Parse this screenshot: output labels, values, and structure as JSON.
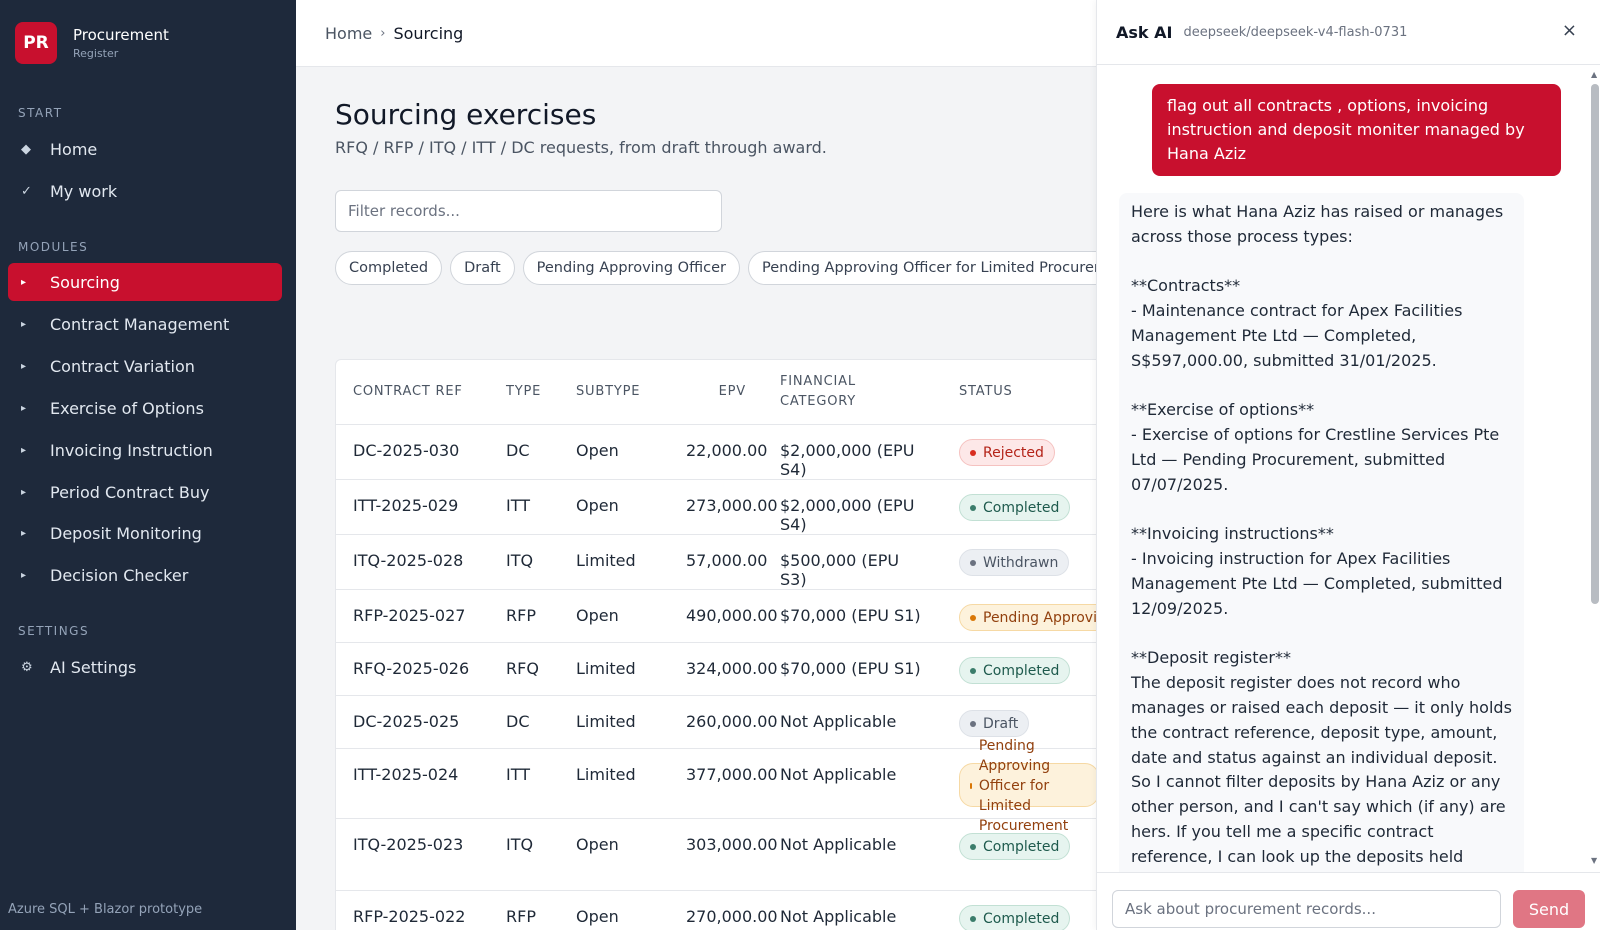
{
  "brand": {
    "initials": "PR",
    "title": "Procurement",
    "subtitle": "Register"
  },
  "sidebar": {
    "sections": {
      "start": "START",
      "modules": "MODULES",
      "settings": "SETTINGS"
    },
    "start_items": [
      {
        "icon": "◆",
        "label": "Home"
      },
      {
        "icon": "✓",
        "label": "My work"
      }
    ],
    "module_items": [
      {
        "icon": "▸",
        "label": "Sourcing"
      },
      {
        "icon": "▸",
        "label": "Contract Management"
      },
      {
        "icon": "▸",
        "label": "Contract Variation"
      },
      {
        "icon": "▸",
        "label": "Exercise of Options"
      },
      {
        "icon": "▸",
        "label": "Invoicing Instruction"
      },
      {
        "icon": "▸",
        "label": "Period Contract Buy"
      },
      {
        "icon": "▸",
        "label": "Deposit Monitoring"
      },
      {
        "icon": "▸",
        "label": "Decision Checker"
      }
    ],
    "settings_items": [
      {
        "icon": "⚙",
        "label": "AI Settings"
      }
    ],
    "active_item": "Sourcing",
    "footer": "Azure SQL + Blazor prototype"
  },
  "breadcrumb": {
    "home": "Home",
    "separator": "›",
    "current": "Sourcing"
  },
  "page": {
    "title": "Sourcing exercises",
    "subtitle": "RFQ / RFP / ITQ / ITT / DC requests, from draft through award.",
    "filter_placeholder": "Filter records...",
    "chips": [
      "Completed",
      "Draft",
      "Pending Approving Officer",
      "Pending Approving Officer for Limited Procurement"
    ]
  },
  "table": {
    "headers": {
      "ref": "CONTRACT REF",
      "type": "TYPE",
      "subtype": "SUBTYPE",
      "epv": "EPV",
      "fin": "FINANCIAL CATEGORY",
      "status": "STATUS"
    },
    "rows": [
      {
        "ref": "DC-2025-030",
        "type": "DC",
        "subtype": "Open",
        "epv": "22,000.00",
        "fin": "$2,000,000 (EPU S4)",
        "status": "Rejected"
      },
      {
        "ref": "ITT-2025-029",
        "type": "ITT",
        "subtype": "Open",
        "epv": "273,000.00",
        "fin": "$2,000,000 (EPU S4)",
        "status": "Completed"
      },
      {
        "ref": "ITQ-2025-028",
        "type": "ITQ",
        "subtype": "Limited",
        "epv": "57,000.00",
        "fin": "$500,000 (EPU S3)",
        "status": "Withdrawn"
      },
      {
        "ref": "RFP-2025-027",
        "type": "RFP",
        "subtype": "Open",
        "epv": "490,000.00",
        "fin": "$70,000 (EPU S1)",
        "status": "Pending Approving Officer"
      },
      {
        "ref": "RFQ-2025-026",
        "type": "RFQ",
        "subtype": "Limited",
        "epv": "324,000.00",
        "fin": "$70,000 (EPU S1)",
        "status": "Completed"
      },
      {
        "ref": "DC-2025-025",
        "type": "DC",
        "subtype": "Limited",
        "epv": "260,000.00",
        "fin": "Not Applicable",
        "status": "Draft"
      },
      {
        "ref": "ITT-2025-024",
        "type": "ITT",
        "subtype": "Limited",
        "epv": "377,000.00",
        "fin": "Not Applicable",
        "status": "Pending Approving Officer for Limited Procurement"
      },
      {
        "ref": "ITQ-2025-023",
        "type": "ITQ",
        "subtype": "Open",
        "epv": "303,000.00",
        "fin": "Not Applicable",
        "status": "Completed"
      },
      {
        "ref": "RFP-2025-022",
        "type": "RFP",
        "subtype": "Open",
        "epv": "270,000.00",
        "fin": "Not Applicable",
        "status": "Completed"
      }
    ]
  },
  "ai": {
    "title": "Ask AI",
    "model": "deepseek/deepseek-v4-flash-0731",
    "close_icon": "×",
    "user_message": "flag out all contracts , options, invoicing instruction and deposit moniter managed by Hana Aziz",
    "assistant_message": "Here is what Hana Aziz has raised or manages across those process types:\n\n**Contracts**\n- Maintenance contract for Apex Facilities Management Pte Ltd — Completed, S$597,000.00, submitted 31/01/2025.\n\n**Exercise of options**\n- Exercise of options for Crestline Services Pte Ltd — Pending Procurement, submitted 07/07/2025.\n\n**Invoicing instructions**\n- Invoicing instruction for Apex Facilities Management Pte Ltd — Completed, submitted 12/09/2025.\n\n**Deposit register**\nThe deposit register does not record who manages or raised each deposit — it only holds the contract reference, deposit type, amount, date and status against an individual deposit. So I cannot filter deposits by Hana Aziz or any other person, and I can't say which (if any) are hers. If you tell me a specific contract reference, I can look up the deposits held against it.",
    "input_placeholder": "Ask about procurement records...",
    "send_label": "Send"
  },
  "colors": {
    "accent": "#c8102e",
    "sidebar_bg": "#1e293b",
    "send_disabled": "#e07684"
  }
}
